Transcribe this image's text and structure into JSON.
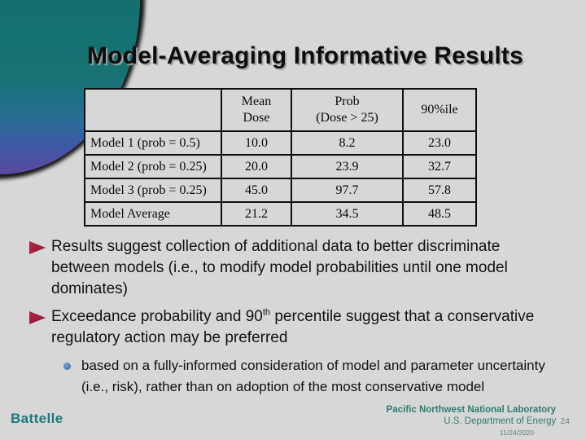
{
  "slide": {
    "title": "Model-Averaging Informative Results",
    "background_color": "#d7d7d7",
    "accent_teal": "#167372",
    "accent_maroon": "#9e1b3a",
    "sub_bullet_blue": "#4d7ebf"
  },
  "table": {
    "col_headers": [
      "",
      "Mean\nDose",
      "Prob\n(Dose > 25)",
      "90%ile"
    ],
    "rows": [
      {
        "label": "Model 1 (prob = 0.5)",
        "values": [
          "10.0",
          "8.2",
          "23.0"
        ]
      },
      {
        "label": "Model 2 (prob = 0.25)",
        "values": [
          "20.0",
          "23.9",
          "32.7"
        ]
      },
      {
        "label": "Model 3 (prob = 0.25)",
        "values": [
          "45.0",
          "97.7",
          "57.8"
        ]
      },
      {
        "label": "Model Average",
        "values": [
          "21.2",
          "34.5",
          "48.5"
        ]
      }
    ]
  },
  "bullets": {
    "b1": "Results suggest collection of additional data to better discriminate between models (i.e., to modify model probabilities until one model dominates)",
    "b2_pre": "Exceedance probability and 90",
    "b2_sup": "th",
    "b2_post": " percentile suggest that a conservative regulatory action may be preferred",
    "sub1": "based on a fully-informed consideration of model and parameter uncertainty (i.e., risk), rather than on adoption of the most conservative model"
  },
  "footer": {
    "battelle_logo": "Battelle",
    "org_line1": "Pacific Northwest National Laboratory",
    "org_line2": "U.S. Department of Energy",
    "page_number": "24",
    "date": "11/24/2020"
  }
}
